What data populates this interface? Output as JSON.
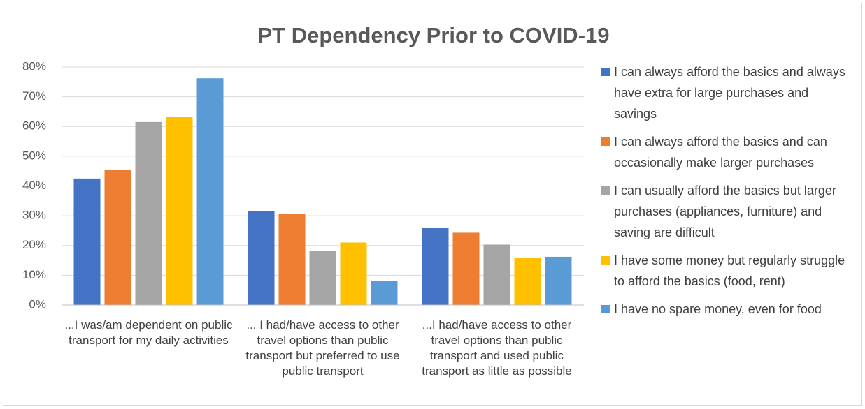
{
  "chart_data": {
    "type": "bar",
    "title": "PT Dependency Prior to COVID-19",
    "categories": [
      "...I was/am dependent on public transport for my daily activities",
      "... I had/have access to other travel options than public transport but preferred to use public transport",
      "...I had/have access to other travel options than public transport and used public transport as little as possible"
    ],
    "series": [
      {
        "name": "I can always afford the basics and always have extra for large purchases and savings",
        "color": "#4472c4",
        "values": [
          42.5,
          31.5,
          26.0
        ]
      },
      {
        "name": "I can always afford the basics and can occasionally make larger purchases",
        "color": "#ed7d31",
        "values": [
          45.5,
          30.5,
          24.3
        ]
      },
      {
        "name": "I can usually afford the basics but larger purchases (appliances, furniture) and saving are difficult",
        "color": "#a5a5a5",
        "values": [
          61.5,
          18.3,
          20.3
        ]
      },
      {
        "name": "I have some money but regularly struggle to afford the basics (food, rent)",
        "color": "#ffc000",
        "values": [
          63.3,
          21.0,
          15.8
        ]
      },
      {
        "name": "I have no spare money, even for food",
        "color": "#5b9bd5",
        "values": [
          76.2,
          8.0,
          16.2
        ]
      }
    ],
    "ylim": [
      0,
      80
    ],
    "yticks": [
      {
        "value": 0,
        "label": "0%"
      },
      {
        "value": 10,
        "label": "10%"
      },
      {
        "value": 20,
        "label": "20%"
      },
      {
        "value": 30,
        "label": "30%"
      },
      {
        "value": 40,
        "label": "40%"
      },
      {
        "value": 50,
        "label": "50%"
      },
      {
        "value": 60,
        "label": "60%"
      },
      {
        "value": 70,
        "label": "70%"
      },
      {
        "value": 80,
        "label": "80%"
      }
    ],
    "grid": true,
    "legend": "right"
  }
}
